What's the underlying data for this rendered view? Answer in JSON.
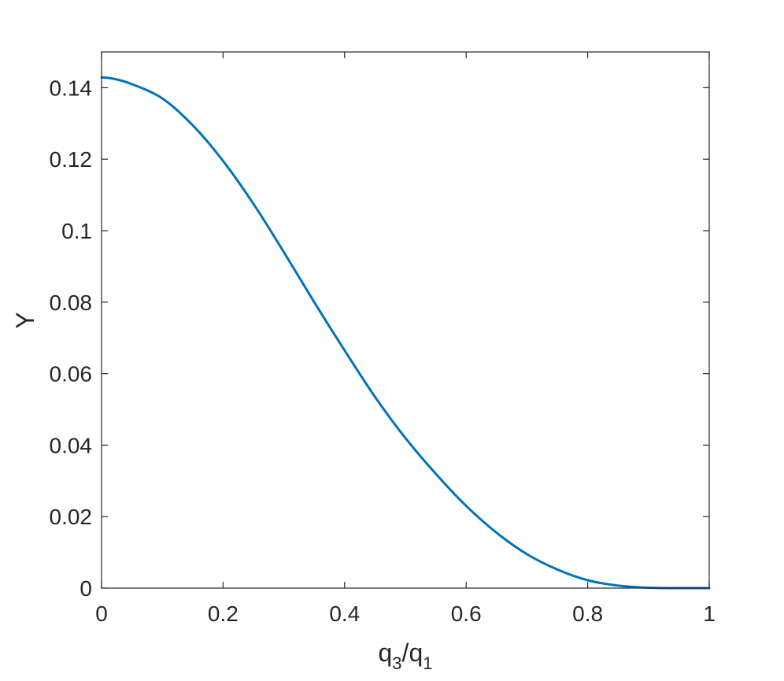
{
  "chart_data": {
    "type": "line",
    "title": "",
    "xlabel": {
      "base1": "q",
      "sub1": "3",
      "sep": "/",
      "base2": "q",
      "sub2": "1"
    },
    "ylabel": "Y",
    "xlim": [
      0,
      1
    ],
    "ylim": [
      0,
      0.15
    ],
    "xticks": [
      0,
      0.2,
      0.4,
      0.6,
      0.8,
      1
    ],
    "xtick_labels": [
      "0",
      "0.2",
      "0.4",
      "0.6",
      "0.8",
      "1"
    ],
    "yticks": [
      0,
      0.02,
      0.04,
      0.06,
      0.08,
      0.1,
      0.12,
      0.14
    ],
    "ytick_labels": [
      "0",
      "0.02",
      "0.04",
      "0.06",
      "0.08",
      "0.1",
      "0.12",
      "0.14"
    ],
    "grid": false,
    "box": true,
    "series": [
      {
        "color": "#0072BD",
        "x": [
          0,
          0.02,
          0.05,
          0.1,
          0.15,
          0.2,
          0.25,
          0.3,
          0.35,
          0.4,
          0.45,
          0.5,
          0.55,
          0.6,
          0.65,
          0.7,
          0.75,
          0.8,
          0.85,
          0.9,
          0.95,
          1.0
        ],
        "y": [
          0.1429,
          0.1425,
          0.141,
          0.137,
          0.1295,
          0.1195,
          0.1075,
          0.094,
          0.08,
          0.0665,
          0.0535,
          0.042,
          0.032,
          0.023,
          0.0155,
          0.0095,
          0.0052,
          0.0022,
          0.0007,
          0.0001,
          0.0,
          0.0
        ]
      }
    ]
  }
}
